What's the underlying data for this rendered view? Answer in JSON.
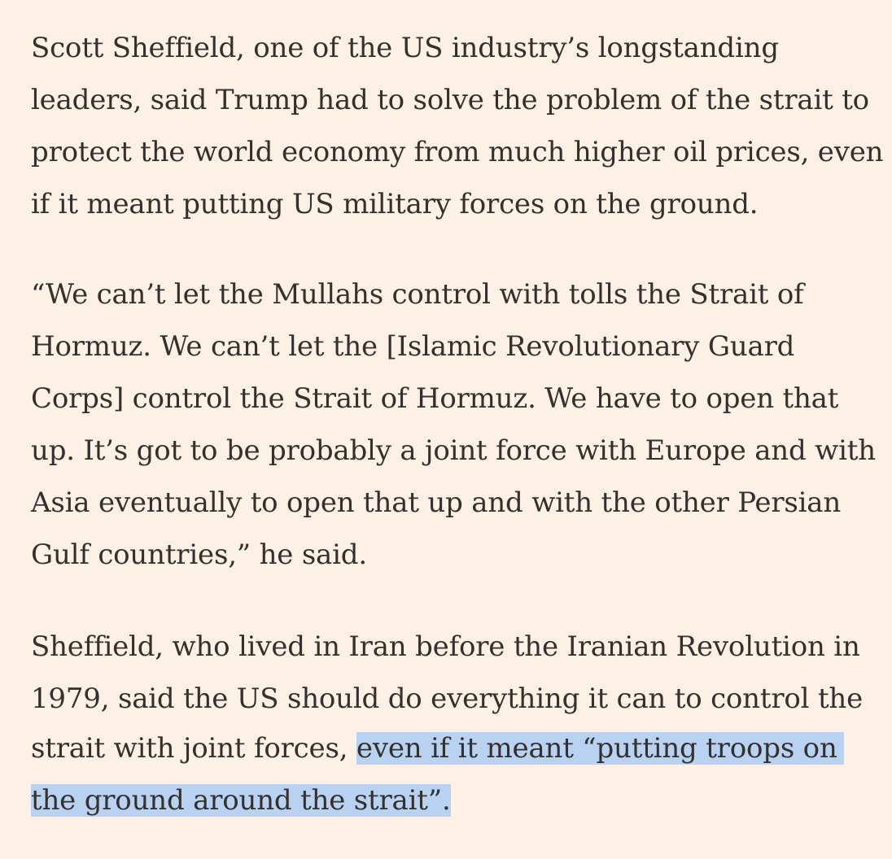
{
  "article": {
    "paragraphs": [
      {
        "lines": [
          "Scott Sheffield, one of the US industry’s longstanding",
          "leaders, said Trump had to solve the problem of the strait to",
          "protect the world economy from much higher oil prices, even",
          "if it meant putting US military forces on the ground."
        ]
      },
      {
        "lines": [
          "“We can’t let the Mullahs control with tolls the Strait of",
          "Hormuz. We can’t let the [Islamic Revolutionary Guard",
          "Corps] control the Strait of Hormuz. We have to open that",
          "up. It’s got to be probably a joint force with Europe and with",
          "Asia eventually to open that up and with the other Persian",
          "Gulf countries,” he said."
        ]
      },
      {
        "lines": [
          "Sheffield, who lived in Iran before the Iranian Revolution in",
          "1979, said the US should do everything it can to control the"
        ],
        "line_before_highlight": "strait with joint forces, ",
        "highlighted": [
          "even if it meant “putting troops on",
          "the ground around the strait”."
        ]
      }
    ],
    "highlight_color": "#b9d2f2",
    "background_color": "#fdf1e6",
    "text_color": "#33302e"
  }
}
